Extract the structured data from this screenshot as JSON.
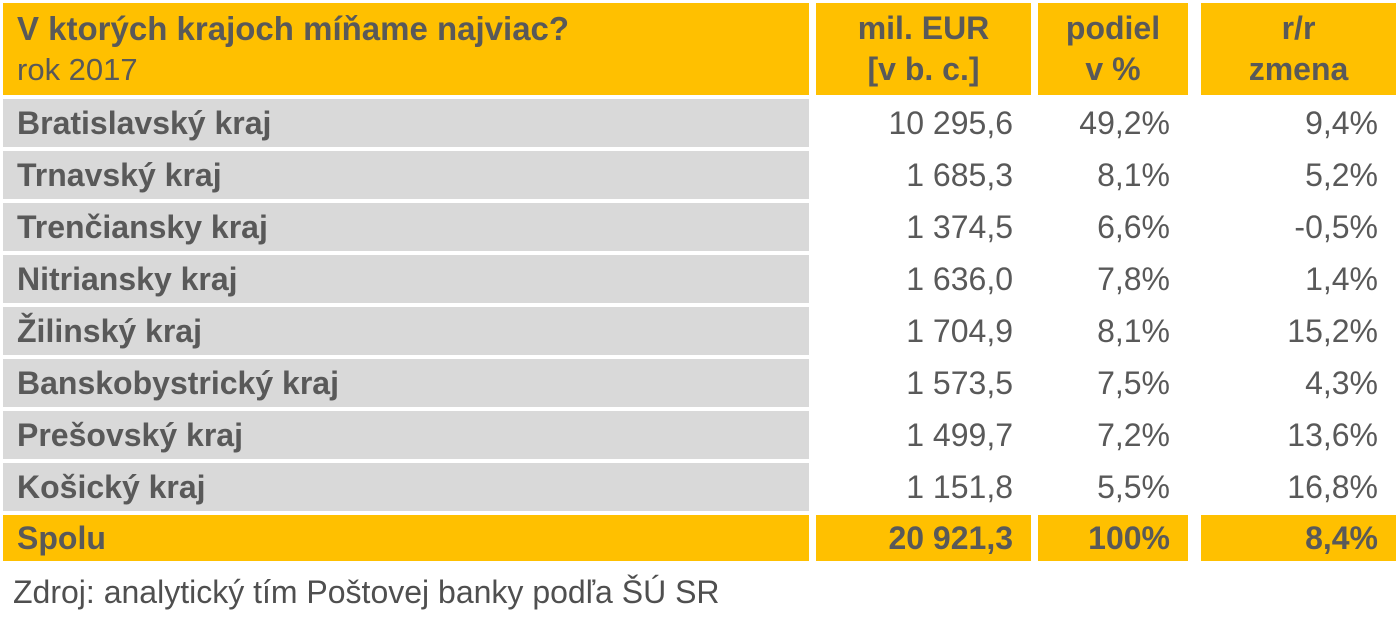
{
  "chart_data": {
    "type": "table",
    "title": "V ktorých krajoch míňame najviac?",
    "subtitle": "rok 2017",
    "column_headers": [
      {
        "line1": "mil. EUR",
        "line2": "[v b. c.]"
      },
      {
        "line1": "podiel",
        "line2": "v %"
      },
      {
        "line1": "r/r",
        "line2": "zmena"
      }
    ],
    "rows": [
      {
        "region": "Bratislavský kraj",
        "mil_eur": "10 295,6",
        "podiel": "49,2%",
        "zmena": "9,4%"
      },
      {
        "region": "Trnavský kraj",
        "mil_eur": "1 685,3",
        "podiel": "8,1%",
        "zmena": "5,2%"
      },
      {
        "region": "Trenčiansky kraj",
        "mil_eur": "1 374,5",
        "podiel": "6,6%",
        "zmena": "-0,5%"
      },
      {
        "region": "Nitriansky kraj",
        "mil_eur": "1 636,0",
        "podiel": "7,8%",
        "zmena": "1,4%"
      },
      {
        "region": "Žilinský kraj",
        "mil_eur": "1 704,9",
        "podiel": "8,1%",
        "zmena": "15,2%"
      },
      {
        "region": "Banskobystrický kraj",
        "mil_eur": "1 573,5",
        "podiel": "7,5%",
        "zmena": "4,3%"
      },
      {
        "region": "Prešovský kraj",
        "mil_eur": "1 499,7",
        "podiel": "7,2%",
        "zmena": "13,6%"
      },
      {
        "region": "Košický kraj",
        "mil_eur": "1 151,8",
        "podiel": "5,5%",
        "zmena": "16,8%"
      }
    ],
    "total": {
      "region": "Spolu",
      "mil_eur": "20 921,3",
      "podiel": "100%",
      "zmena": "8,4%"
    },
    "source": "Zdroj: analytický tím Poštovej banky podľa ŠÚ SR"
  },
  "colors": {
    "brand_yellow": "#FFC000",
    "row_gray": "#D9D9D9",
    "text": "#595959"
  }
}
